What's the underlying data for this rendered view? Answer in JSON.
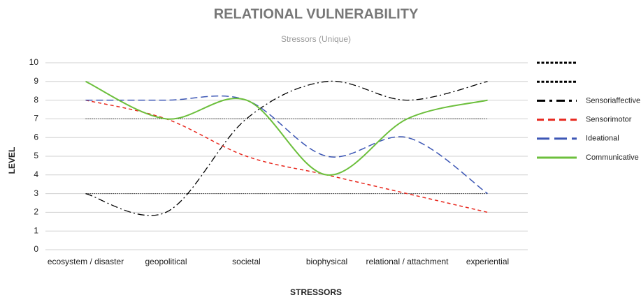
{
  "chart_data": {
    "type": "line",
    "title": "RELATIONAL VULNERABILITY",
    "subtitle": "Stressors (Unique)",
    "x_label": "STRESSORS",
    "y_label": "LEVEL",
    "categories": [
      "ecosystem / disaster",
      "geopolitical",
      "societal",
      "biophysical",
      "relational / attachment",
      "experiential"
    ],
    "ylim": [
      0,
      10
    ],
    "yticks": [
      0,
      1,
      2,
      3,
      4,
      5,
      6,
      7,
      8,
      9,
      10
    ],
    "grid": true,
    "smooth": true,
    "legend": "right",
    "series": [
      {
        "color": "#000000",
        "dash": "dotted",
        "values": [
          7,
          7,
          7,
          7,
          7,
          7
        ]
      },
      {
        "color": "#000000",
        "dash": "dotted",
        "values": [
          3,
          3,
          3,
          3,
          3,
          3
        ]
      },
      {
        "name": "Sensoriaffective",
        "color": "#000000",
        "dash": "dashdot",
        "values": [
          3,
          2,
          7,
          9,
          8,
          9
        ]
      },
      {
        "name": "Sensorimotor",
        "color": "#e8281e",
        "dash": "dashed",
        "values": [
          8,
          7,
          5,
          4,
          3,
          2
        ]
      },
      {
        "name": "Ideational",
        "color": "#3d57b5",
        "dash": "longdash",
        "values": [
          8,
          8,
          8,
          5,
          6,
          3
        ]
      },
      {
        "name": "Communicative",
        "color": "#6cbf3c",
        "dash": "solid",
        "values": [
          9,
          7,
          8,
          4,
          7,
          8
        ]
      }
    ]
  }
}
